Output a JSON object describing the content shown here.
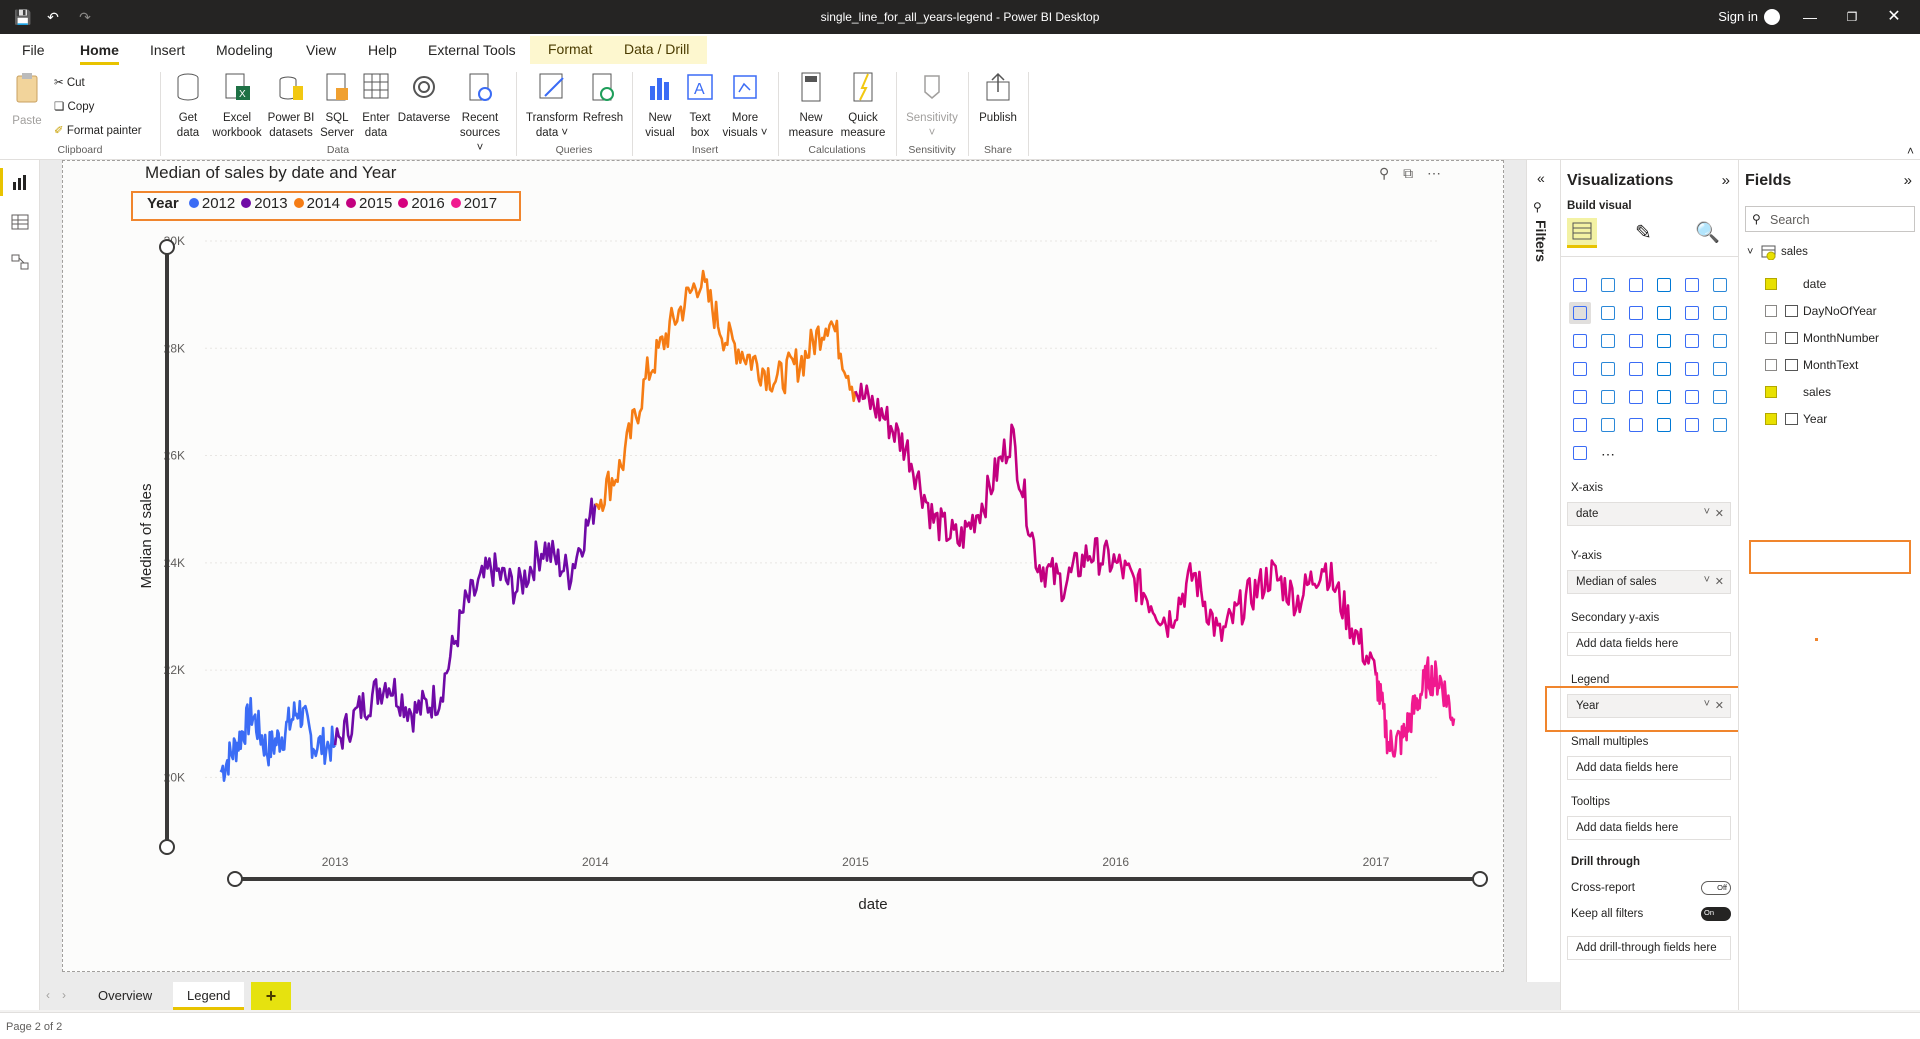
{
  "window": {
    "title": "single_line_for_all_years-legend - Power BI Desktop",
    "sign_in": "Sign in"
  },
  "tabs": [
    "File",
    "Home",
    "Insert",
    "Modeling",
    "View",
    "Help",
    "External Tools",
    "Format",
    "Data / Drill"
  ],
  "ribbon": {
    "paste": "Paste",
    "cut": "Cut",
    "copy": "Copy",
    "format_painter": "Format painter",
    "get_data": [
      "Get",
      "data"
    ],
    "excel": [
      "Excel",
      "workbook"
    ],
    "powerbi": [
      "Power BI",
      "datasets"
    ],
    "sql": [
      "SQL",
      "Server"
    ],
    "enter": [
      "Enter",
      "data"
    ],
    "dataverse": [
      "Dataverse"
    ],
    "recent": [
      "Recent",
      "sources"
    ],
    "transform": [
      "Transform",
      "data"
    ],
    "refresh": [
      "Refresh"
    ],
    "new_visual": [
      "New",
      "visual"
    ],
    "text_box": [
      "Text",
      "box"
    ],
    "more_visuals": [
      "More",
      "visuals"
    ],
    "new_measure": [
      "New",
      "measure"
    ],
    "quick_measure": [
      "Quick",
      "measure"
    ],
    "sensitivity": [
      "Sensitivity"
    ],
    "publish": [
      "Publish"
    ],
    "groups": {
      "clipboard": "Clipboard",
      "data": "Data",
      "queries": "Queries",
      "insert": "Insert",
      "calculations": "Calculations",
      "sensitivity": "Sensitivity",
      "share": "Share"
    }
  },
  "visual": {
    "title": "Median of sales by date and Year",
    "legend_title": "Year",
    "legend_items": [
      {
        "label": "2012",
        "color": "#3b6cf5"
      },
      {
        "label": "2013",
        "color": "#6f0aa6"
      },
      {
        "label": "2014",
        "color": "#f57c14"
      },
      {
        "label": "2015",
        "color": "#c2007f"
      },
      {
        "label": "2016",
        "color": "#d6007f"
      },
      {
        "label": "2017",
        "color": "#f0198f"
      }
    ]
  },
  "chart_data": {
    "type": "line",
    "title": "Median of sales by date and Year",
    "xlabel": "date",
    "ylabel": "Median of sales",
    "x_ticks": [
      "2013",
      "2014",
      "2015",
      "2016",
      "2017"
    ],
    "y_ticks": [
      "30K",
      "28K",
      "26K",
      "24K",
      "22K",
      "20K"
    ],
    "ylim": [
      19000,
      30000
    ],
    "xlim": [
      "2012-07",
      "2017-07"
    ],
    "legend_position": "top-left",
    "series": [
      {
        "name": "2012",
        "color": "#3b6cf5",
        "x": [
          2012.56,
          2012.62,
          2012.68,
          2012.74,
          2012.8,
          2012.86,
          2012.92,
          2013.0
        ],
        "y": [
          20100,
          20600,
          21200,
          20500,
          20800,
          21300,
          20600,
          20600
        ]
      },
      {
        "name": "2013",
        "color": "#6f0aa6",
        "x": [
          2013.0,
          2013.1,
          2013.2,
          2013.3,
          2013.4,
          2013.5,
          2013.6,
          2013.7,
          2013.8,
          2013.9,
          2014.0
        ],
        "y": [
          20600,
          21300,
          21800,
          21200,
          21500,
          23200,
          23900,
          23500,
          24300,
          23800,
          25100
        ]
      },
      {
        "name": "2014",
        "color": "#f57c14",
        "x": [
          2014.0,
          2014.1,
          2014.2,
          2014.3,
          2014.4,
          2014.5,
          2014.6,
          2014.7,
          2014.8,
          2014.9,
          2015.0
        ],
        "y": [
          25100,
          25800,
          27500,
          28500,
          29300,
          28200,
          27800,
          27400,
          27800,
          28600,
          27200
        ]
      },
      {
        "name": "2015",
        "color": "#c2007f",
        "x": [
          2015.0,
          2015.1,
          2015.2,
          2015.3,
          2015.4,
          2015.5,
          2015.6,
          2015.7,
          2015.8,
          2015.9,
          2016.0
        ],
        "y": [
          27200,
          26800,
          26100,
          24800,
          24400,
          25200,
          26400,
          24000,
          23600,
          24200,
          24000
        ]
      },
      {
        "name": "2016",
        "color": "#d6007f",
        "x": [
          2016.0,
          2016.1,
          2016.2,
          2016.3,
          2016.4,
          2016.5,
          2016.6,
          2016.7,
          2016.8,
          2016.9,
          2017.0
        ],
        "y": [
          24000,
          23500,
          22900,
          23800,
          22600,
          23300,
          23800,
          23300,
          24000,
          22900,
          21900
        ]
      },
      {
        "name": "2017",
        "color": "#f0198f",
        "x": [
          2017.0,
          2017.05,
          2017.1,
          2017.15,
          2017.2,
          2017.25,
          2017.3
        ],
        "y": [
          21900,
          20600,
          20700,
          21300,
          21900,
          21800,
          21100
        ]
      }
    ]
  },
  "visualizations": {
    "title": "Visualizations",
    "build_visual": "Build visual",
    "wells": {
      "xaxis": {
        "label": "X-axis",
        "value": "date"
      },
      "yaxis": {
        "label": "Y-axis",
        "value": "Median of sales"
      },
      "secondary": {
        "label": "Secondary y-axis",
        "placeholder": "Add data fields here"
      },
      "legend": {
        "label": "Legend",
        "value": "Year"
      },
      "small_multiples": {
        "label": "Small multiples",
        "placeholder": "Add data fields here"
      },
      "tooltips": {
        "label": "Tooltips",
        "placeholder": "Add data fields here"
      }
    },
    "drill_through": {
      "title": "Drill through",
      "cross_report": "Cross-report",
      "cross_report_state": "Off",
      "keep_all_filters": "Keep all filters",
      "keep_state": "On",
      "add_fields": "Add drill-through fields here"
    },
    "filters_label": "Filters"
  },
  "fields": {
    "title": "Fields",
    "search_placeholder": "Search",
    "table": "sales",
    "items": [
      {
        "name": "date",
        "checked": true
      },
      {
        "name": "DayNoOfYear",
        "checked": false
      },
      {
        "name": "MonthNumber",
        "checked": false
      },
      {
        "name": "MonthText",
        "checked": false
      },
      {
        "name": "sales",
        "checked": true
      },
      {
        "name": "Year",
        "checked": true
      }
    ]
  },
  "pages": {
    "tabs": [
      "Overview",
      "Legend"
    ],
    "active": "Legend",
    "status": "Page 2 of 2"
  },
  "colors": {
    "accent": "#e8c300",
    "highlight": "#f0852d"
  }
}
